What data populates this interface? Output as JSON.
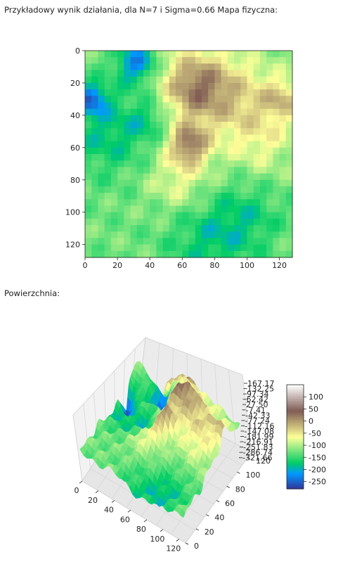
{
  "captions": {
    "heatmap": "Przykładowy wynik działania, dla N=7 i Sigma=0.66 Mapa fizyczna:",
    "surface": "Powierzchnia:"
  },
  "chart_data": [
    {
      "type": "heatmap",
      "title": "",
      "xlabel": "",
      "ylabel": "",
      "xlim": [
        0,
        128
      ],
      "ylim": [
        128,
        0
      ],
      "x_ticks": [
        0,
        20,
        40,
        60,
        80,
        100,
        120
      ],
      "y_ticks": [
        0,
        20,
        40,
        60,
        80,
        100,
        120
      ],
      "colormap": "terrain",
      "grid": false
    },
    {
      "type": "surface",
      "title": "",
      "x_ticks": [
        0,
        20,
        40,
        60,
        80,
        100,
        120
      ],
      "y_ticks": [
        0,
        20,
        40,
        60,
        80,
        100,
        120
      ],
      "z_tick_labels": [
        "167.17",
        "132.25",
        "97.34",
        "62.42",
        "27.50",
        "-7.41",
        "-42.33",
        "-77.24",
        "-112.16",
        "-147.08",
        "-181.99",
        "-216.91",
        "-251.83",
        "-286.74",
        "-321.66"
      ],
      "colorbar_ticks": [
        100,
        50,
        0,
        -50,
        -100,
        -150,
        -200,
        -250
      ],
      "colorbar_range": [
        -280,
        150
      ],
      "colormap": "terrain",
      "grid": true
    }
  ]
}
